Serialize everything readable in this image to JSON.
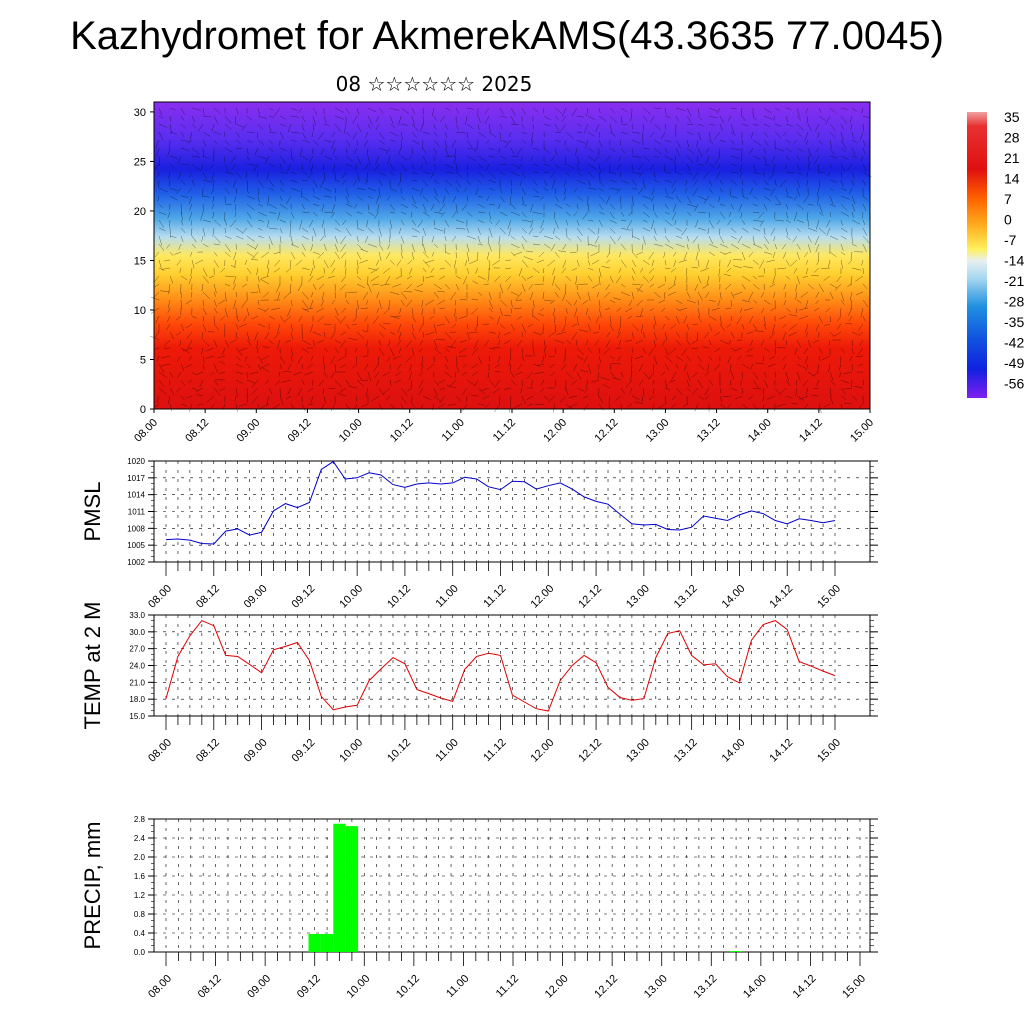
{
  "header": {
    "title": "Kazhydromet for AkmerekAMS(43.3635 77.0045)",
    "subtitle": "08 ☆☆☆☆☆☆ 2025"
  },
  "chart_data": [
    {
      "type": "heatmap",
      "title": "",
      "x_tick_labels": [
        "08.00",
        "08.12",
        "09.00",
        "09.12",
        "10.00",
        "10.12",
        "11.00",
        "11.12",
        "12.00",
        "12.12",
        "13.00",
        "13.12",
        "14.00",
        "14.12",
        "15.00"
      ],
      "y_tick_labels": [
        "0",
        "5",
        "10",
        "15",
        "20",
        "25",
        "30"
      ],
      "ylim": [
        0,
        31
      ],
      "overlay": "wind vectors",
      "colorbar_labels": [
        "35",
        "28",
        "21",
        "14",
        "7",
        "0",
        "-7",
        "-14",
        "-21",
        "-28",
        "-35",
        "-42",
        "-49",
        "-56"
      ],
      "colors": [
        "#e85a5a",
        "#e01010",
        "#ff6000",
        "#ffd030",
        "#a8d8f0",
        "#2090e0",
        "#1020e0",
        "#8020f0"
      ]
    },
    {
      "type": "line",
      "ylabel": "PMSL",
      "y_tick_labels": [
        "1020",
        "1017",
        "1014",
        "1011",
        "1008",
        "1005",
        "1002"
      ],
      "ylim": [
        1002,
        1020
      ],
      "x_tick_labels": [
        "08.00",
        "08.12",
        "09.00",
        "09.12",
        "10.00",
        "10.12",
        "11.00",
        "11.12",
        "12.00",
        "12.12",
        "13.00",
        "13.12",
        "14.00",
        "14.12",
        "15.00"
      ],
      "series": [
        {
          "color": "#0000cc",
          "x": [
            0,
            3,
            6,
            9,
            12,
            15,
            18,
            21,
            24,
            27,
            30,
            33,
            36,
            39,
            42,
            45,
            48,
            51,
            54,
            57,
            60,
            63,
            66,
            69,
            72,
            75,
            78,
            81,
            84,
            87,
            90,
            93,
            96,
            99,
            102,
            105,
            108,
            111,
            114,
            117,
            120,
            123,
            126,
            129,
            132,
            135,
            138,
            141,
            144,
            147,
            150,
            153,
            156,
            159,
            162,
            165,
            168
          ],
          "values": [
            1006.0,
            1006.1,
            1005.9,
            1005.3,
            1005.2,
            1007.5,
            1007.9,
            1006.8,
            1007.3,
            1011.1,
            1012.4,
            1011.7,
            1012.6,
            1018.5,
            1019.9,
            1016.8,
            1017.0,
            1017.9,
            1017.5,
            1015.8,
            1015.3,
            1015.9,
            1016.1,
            1015.9,
            1016.1,
            1017.1,
            1016.8,
            1015.4,
            1014.9,
            1016.4,
            1016.3,
            1015.0,
            1015.6,
            1016.1,
            1015.0,
            1013.6,
            1012.8,
            1012.3,
            1010.5,
            1008.8,
            1008.6,
            1008.7,
            1007.8,
            1007.7,
            1008.2,
            1010.2,
            1009.8,
            1009.4,
            1010.4,
            1011.1,
            1010.6,
            1009.4,
            1008.8,
            1009.7,
            1009.4,
            1009.0,
            1009.4
          ]
        }
      ]
    },
    {
      "type": "line",
      "ylabel": "TEMP at 2 M",
      "y_tick_labels": [
        "33.0",
        "30.0",
        "27.0",
        "24.0",
        "21.0",
        "18.0",
        "15.0"
      ],
      "ylim": [
        15,
        33
      ],
      "x_tick_labels": [
        "08.00",
        "08.12",
        "09.00",
        "09.12",
        "10.00",
        "10.12",
        "11.00",
        "11.12",
        "12.00",
        "12.12",
        "13.00",
        "13.12",
        "14.00",
        "14.12",
        "15.00"
      ],
      "series": [
        {
          "color": "#dd0000",
          "x": [
            0,
            3,
            6,
            9,
            12,
            15,
            18,
            21,
            24,
            27,
            30,
            33,
            36,
            39,
            42,
            45,
            48,
            51,
            54,
            57,
            60,
            63,
            66,
            69,
            72,
            75,
            78,
            81,
            84,
            87,
            90,
            93,
            96,
            99,
            102,
            105,
            108,
            111,
            114,
            117,
            120,
            123,
            126,
            129,
            132,
            135,
            138,
            141,
            144,
            147,
            150,
            153,
            156,
            159,
            162,
            165,
            168
          ],
          "values": [
            18.1,
            25.6,
            29.3,
            32.0,
            31.1,
            25.8,
            25.6,
            24.2,
            22.7,
            26.8,
            27.4,
            28.1,
            24.9,
            18.5,
            16.1,
            16.6,
            16.9,
            21.3,
            23.4,
            25.4,
            24.3,
            19.7,
            19.0,
            18.2,
            17.6,
            23.3,
            25.6,
            26.2,
            25.8,
            18.7,
            17.5,
            16.3,
            15.9,
            21.3,
            24.0,
            25.8,
            24.5,
            20.1,
            18.3,
            17.8,
            18.1,
            25.4,
            29.7,
            30.2,
            25.8,
            24.1,
            24.3,
            22.0,
            20.9,
            28.5,
            31.3,
            32.0,
            30.4,
            24.7,
            23.9,
            23.0,
            22.2
          ]
        }
      ]
    },
    {
      "type": "bar",
      "ylabel": "PRECIP, mm",
      "y_tick_labels": [
        "2.8",
        "2.4",
        "2.0",
        "1.6",
        "1.2",
        "0.8",
        "0.4",
        "0.0"
      ],
      "ylim": [
        0,
        2.8
      ],
      "x_tick_labels": [
        "08.00",
        "08.12",
        "09.00",
        "09.12",
        "10.00",
        "10.12",
        "11.00",
        "11.12",
        "12.00",
        "12.12",
        "13.00",
        "13.12",
        "14.00",
        "14.12",
        "15.00"
      ],
      "series": [
        {
          "color": "#00ff00",
          "x": [
            36,
            39,
            42,
            45,
            138
          ],
          "values": [
            0.38,
            0.38,
            2.7,
            2.65,
            0.02
          ]
        }
      ]
    }
  ]
}
